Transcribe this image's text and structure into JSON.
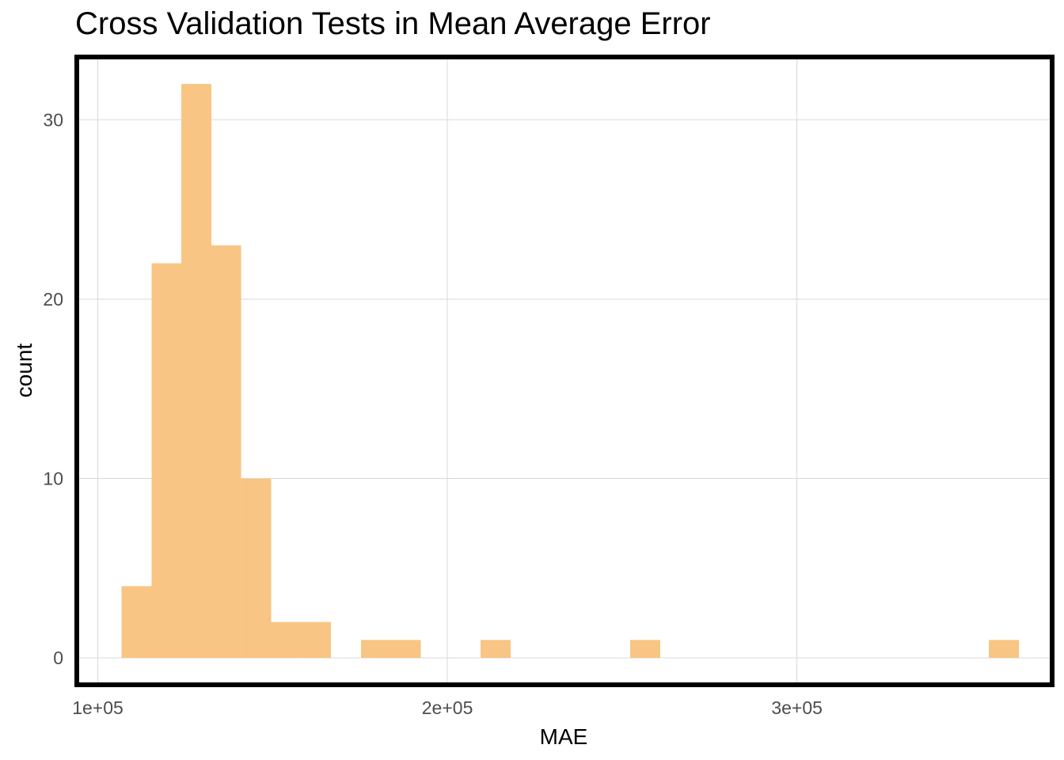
{
  "chart_data": {
    "type": "bar",
    "title": "Cross Validation Tests in Mean Average Error",
    "xlabel": "MAE",
    "ylabel": "count",
    "xlim": [
      94000,
      373000
    ],
    "ylim": [
      -1.5,
      33.5
    ],
    "x_ticks": [
      {
        "value": 100000,
        "label": "1e+05"
      },
      {
        "value": 200000,
        "label": "2e+05"
      },
      {
        "value": 300000,
        "label": "3e+05"
      }
    ],
    "y_ticks": [
      {
        "value": 0,
        "label": "0"
      },
      {
        "value": 10,
        "label": "10"
      },
      {
        "value": 20,
        "label": "20"
      },
      {
        "value": 30,
        "label": "30"
      }
    ],
    "bins": [
      {
        "x0": 106800,
        "x1": 115400,
        "count": 4
      },
      {
        "x0": 115400,
        "x1": 123900,
        "count": 22
      },
      {
        "x0": 123900,
        "x1": 132500,
        "count": 32
      },
      {
        "x0": 132500,
        "x1": 141000,
        "count": 23
      },
      {
        "x0": 141000,
        "x1": 149600,
        "count": 10
      },
      {
        "x0": 149600,
        "x1": 158100,
        "count": 2
      },
      {
        "x0": 158100,
        "x1": 166700,
        "count": 2
      },
      {
        "x0": 175300,
        "x1": 183800,
        "count": 1
      },
      {
        "x0": 183800,
        "x1": 192400,
        "count": 1
      },
      {
        "x0": 209500,
        "x1": 218100,
        "count": 1
      },
      {
        "x0": 252300,
        "x1": 260900,
        "count": 1
      },
      {
        "x0": 354900,
        "x1": 363500,
        "count": 1
      }
    ],
    "grid": true,
    "colors": {
      "bar": "#f8c585",
      "grid": "#d9d9d9",
      "panel_border": "#000000",
      "tick_text": "#4d4d4d",
      "axis_title": "#000000"
    }
  }
}
